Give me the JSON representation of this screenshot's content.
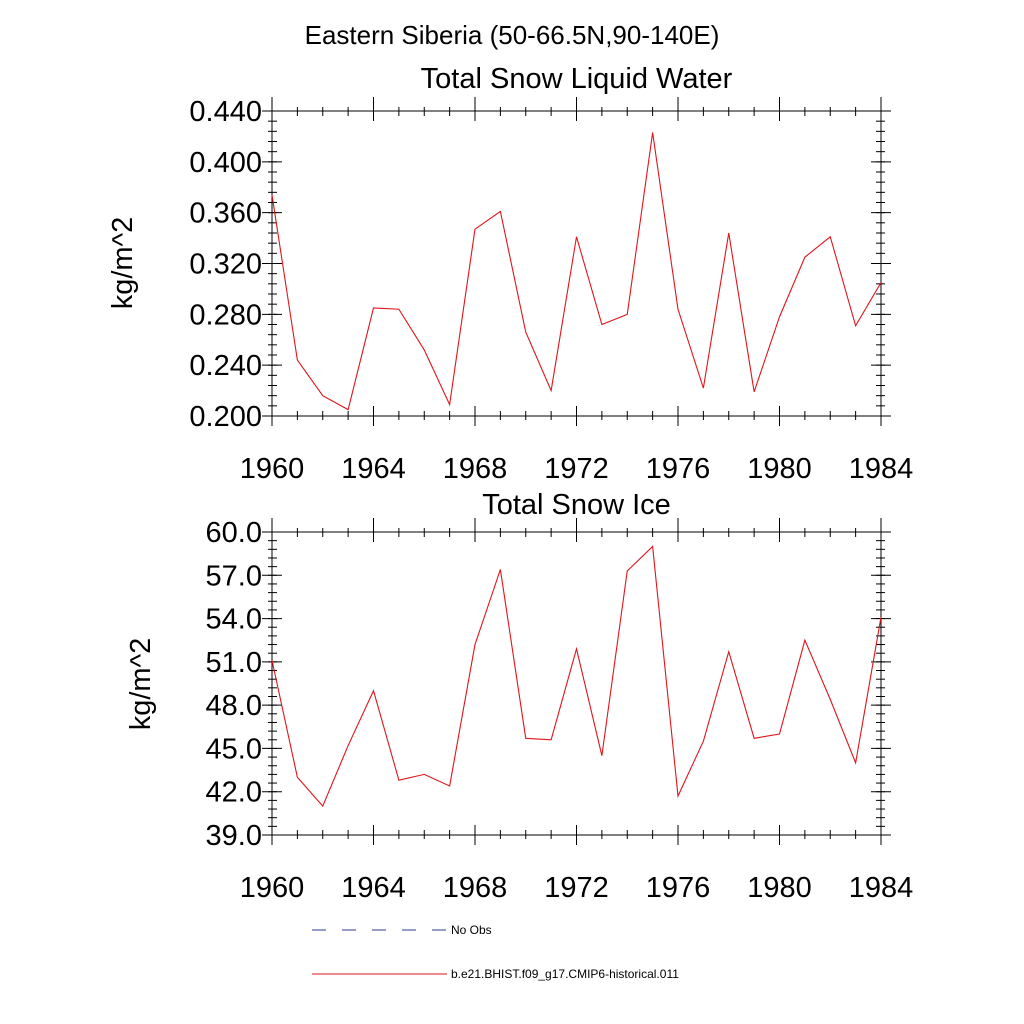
{
  "figure_title": "Eastern Siberia (50-66.5N,90-140E)",
  "legend": [
    {
      "label": "No Obs",
      "style": "dashed",
      "color": "#2b3a8f"
    },
    {
      "label": "b.e21.BHIST.f09_g17.CMIP6-historical.011",
      "style": "solid",
      "color": "#e0141a"
    }
  ],
  "chart_data": [
    {
      "type": "line",
      "title": "Total Snow Liquid Water",
      "xlabel": "",
      "ylabel": "kg/m^2",
      "xlim": [
        1960,
        1984
      ],
      "ylim": [
        0.2,
        0.44
      ],
      "xticks": [
        1960,
        1964,
        1968,
        1972,
        1976,
        1980,
        1984
      ],
      "xtick_labels": [
        "1960",
        "1964",
        "1968",
        "1972",
        "1976",
        "1980",
        "1984"
      ],
      "yticks": [
        0.2,
        0.24,
        0.28,
        0.32,
        0.36,
        0.4,
        0.44
      ],
      "ytick_labels": [
        "0.200",
        "0.240",
        "0.280",
        "0.320",
        "0.360",
        "0.400",
        "0.440"
      ],
      "y_minor_step": 0.008,
      "x_minor_step": 1,
      "grid": false,
      "series": [
        {
          "name": "b.e21.BHIST.f09_g17.CMIP6-historical.011",
          "color": "#e0141a",
          "x": [
            1960,
            1961,
            1962,
            1963,
            1964,
            1965,
            1966,
            1967,
            1968,
            1969,
            1970,
            1971,
            1972,
            1973,
            1974,
            1975,
            1976,
            1977,
            1978,
            1979,
            1980,
            1981,
            1982,
            1983,
            1984
          ],
          "y": [
            0.374,
            0.244,
            0.216,
            0.205,
            0.285,
            0.284,
            0.252,
            0.209,
            0.347,
            0.361,
            0.266,
            0.22,
            0.341,
            0.272,
            0.28,
            0.423,
            0.284,
            0.222,
            0.344,
            0.219,
            0.278,
            0.325,
            0.341,
            0.271,
            0.305
          ]
        }
      ]
    },
    {
      "type": "line",
      "title": "Total Snow Ice",
      "xlabel": "",
      "ylabel": "kg/m^2",
      "xlim": [
        1960,
        1984
      ],
      "ylim": [
        39.0,
        60.0
      ],
      "xticks": [
        1960,
        1964,
        1968,
        1972,
        1976,
        1980,
        1984
      ],
      "xtick_labels": [
        "1960",
        "1964",
        "1968",
        "1972",
        "1976",
        "1980",
        "1984"
      ],
      "yticks": [
        39,
        42,
        45,
        48,
        51,
        54,
        57,
        60
      ],
      "ytick_labels": [
        "39.0",
        "42.0",
        "45.0",
        "48.0",
        "51.0",
        "54.0",
        "57.0",
        "60.0"
      ],
      "y_minor_step": 0.6,
      "x_minor_step": 1,
      "grid": false,
      "series": [
        {
          "name": "b.e21.BHIST.f09_g17.CMIP6-historical.011",
          "color": "#e0141a",
          "x": [
            1960,
            1961,
            1962,
            1963,
            1964,
            1965,
            1966,
            1967,
            1968,
            1969,
            1970,
            1971,
            1972,
            1973,
            1974,
            1975,
            1976,
            1977,
            1978,
            1979,
            1980,
            1981,
            1982,
            1983,
            1984
          ],
          "y": [
            51.1,
            43.0,
            41.0,
            45.2,
            49.0,
            42.8,
            43.2,
            42.4,
            52.2,
            57.4,
            45.7,
            45.6,
            51.9,
            44.5,
            57.3,
            59.0,
            41.7,
            45.5,
            51.7,
            45.7,
            46.0,
            52.5,
            48.4,
            44.0,
            54.1
          ]
        }
      ]
    }
  ]
}
